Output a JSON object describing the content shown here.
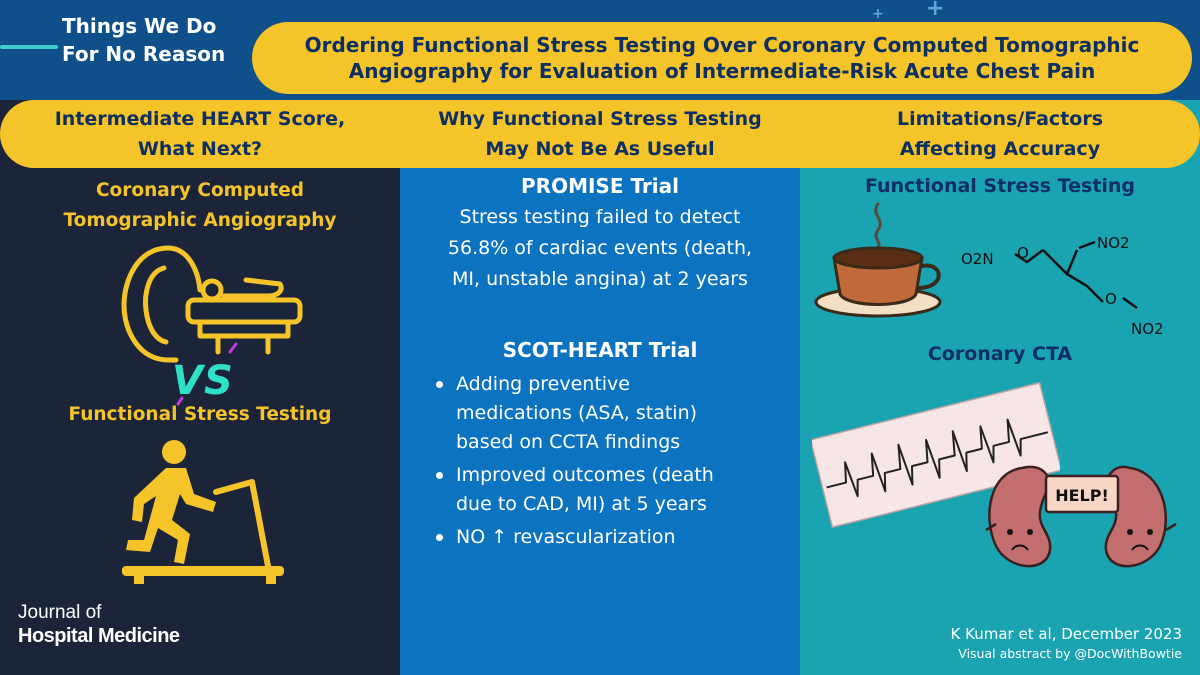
{
  "series": {
    "line1": "Things We Do",
    "line2": "For No Reason"
  },
  "title": {
    "line1": "Ordering Functional Stress Testing Over Coronary Computed Tomographic",
    "line2": "Angiography for Evaluation of Intermediate-Risk Acute Chest Pain"
  },
  "columns": [
    {
      "heading_line1": "Intermediate HEART Score,",
      "heading_line2": "What Next?"
    },
    {
      "heading_line1": "Why  Functional Stress Testing",
      "heading_line2": "May Not Be As Useful"
    },
    {
      "heading_line1": "Limitations/Factors",
      "heading_line2": "Affecting Accuracy"
    }
  ],
  "col1": {
    "option_a_line1": "Coronary Computed",
    "option_a_line2": "Tomographic Angiography",
    "vs": "VS",
    "option_b": "Functional Stress Testing"
  },
  "col2": {
    "promise_title": "PROMISE Trial",
    "promise_line1": "Stress testing failed to detect",
    "promise_line2": "56.8% of cardiac events (death,",
    "promise_line3": "MI, unstable angina) at 2 years",
    "scot_title": "SCOT-HEART Trial",
    "bullets": [
      {
        "line1": "Adding preventive",
        "line2": "medications (ASA, statin)",
        "line3": "based on CCTA findings"
      },
      {
        "line1": "Improved outcomes (death",
        "line2": "due to CAD, MI) at 5 years"
      },
      {
        "line1": "NO ↑ revascularization"
      }
    ]
  },
  "col3": {
    "fst_title": "Functional Stress Testing",
    "cta_title": "Coronary CTA",
    "chem": {
      "g1": "O2N",
      "g2": "O",
      "g3": "NO2",
      "g4": "O",
      "g5": "NO2"
    },
    "kidney_sign": "HELP!"
  },
  "journal": {
    "line1": "Journal of",
    "line2": "Hospital Medicine"
  },
  "credits": {
    "line1": "K Kumar et al, December 2023",
    "line2": "Visual abstract by @DocWithBowtie"
  }
}
